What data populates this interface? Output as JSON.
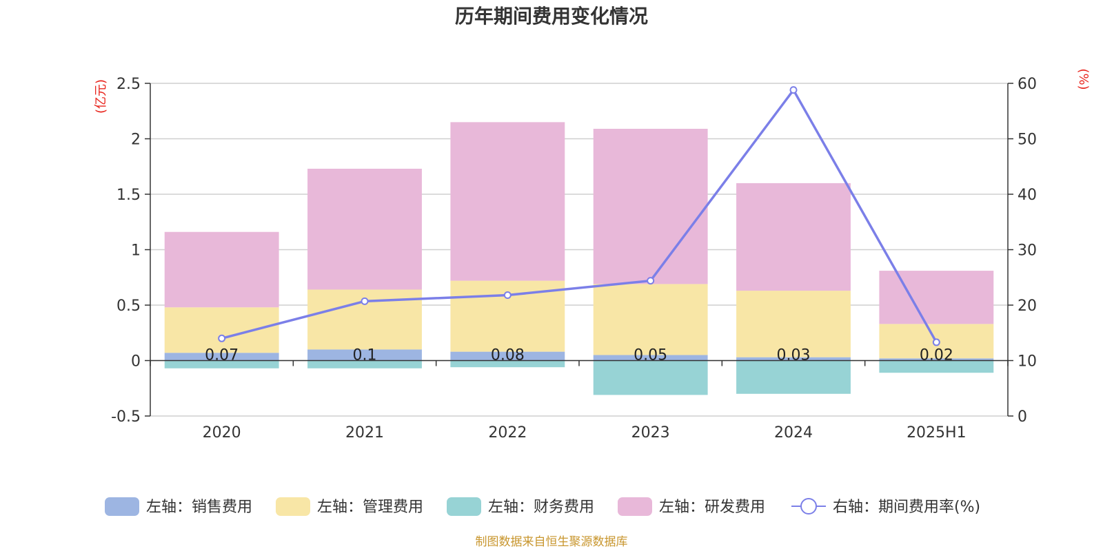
{
  "chart_data": {
    "type": "bar",
    "title": "历年期间费用变化情况",
    "categories": [
      "2020",
      "2021",
      "2022",
      "2023",
      "2024",
      "2025H1"
    ],
    "left_axis": {
      "unit": "(亿元)",
      "ylim": [
        -0.5,
        2.5
      ],
      "ticks": [
        "-0.5",
        "0",
        "0.5",
        "1",
        "1.5",
        "2",
        "2.5"
      ]
    },
    "right_axis": {
      "unit": "(%)",
      "ylim": [
        0,
        60
      ],
      "ticks": [
        "0",
        "10",
        "20",
        "30",
        "40",
        "50",
        "60"
      ]
    },
    "series": [
      {
        "name": "左轴：销售费用",
        "kind": "bar",
        "color": "#9db5e2",
        "values": [
          0.07,
          0.1,
          0.08,
          0.05,
          0.03,
          0.02
        ]
      },
      {
        "name": "左轴：管理费用",
        "kind": "bar",
        "color": "#f8e6a6",
        "values": [
          0.41,
          0.54,
          0.64,
          0.64,
          0.6,
          0.31
        ]
      },
      {
        "name": "左轴：财务费用",
        "kind": "bar",
        "color": "#97d3d5",
        "values": [
          -0.07,
          -0.07,
          -0.06,
          -0.31,
          -0.3,
          -0.11
        ]
      },
      {
        "name": "左轴：研发费用",
        "kind": "bar",
        "color": "#e8b8d9",
        "values": [
          0.68,
          1.09,
          1.43,
          1.4,
          0.97,
          0.48
        ]
      },
      {
        "name": "右轴：期间费用率(%)",
        "kind": "line",
        "axis": "right",
        "color": "#7b7fe8",
        "values": [
          14.0,
          20.7,
          21.8,
          24.4,
          58.8,
          13.3
        ]
      }
    ],
    "data_labels": [
      "0.07",
      "0.1",
      "0.08",
      "0.05",
      "0.03",
      "0.02"
    ],
    "legend_position": "bottom",
    "grid": true
  },
  "footer": {
    "source": "制图数据来自恒生聚源数据库"
  }
}
